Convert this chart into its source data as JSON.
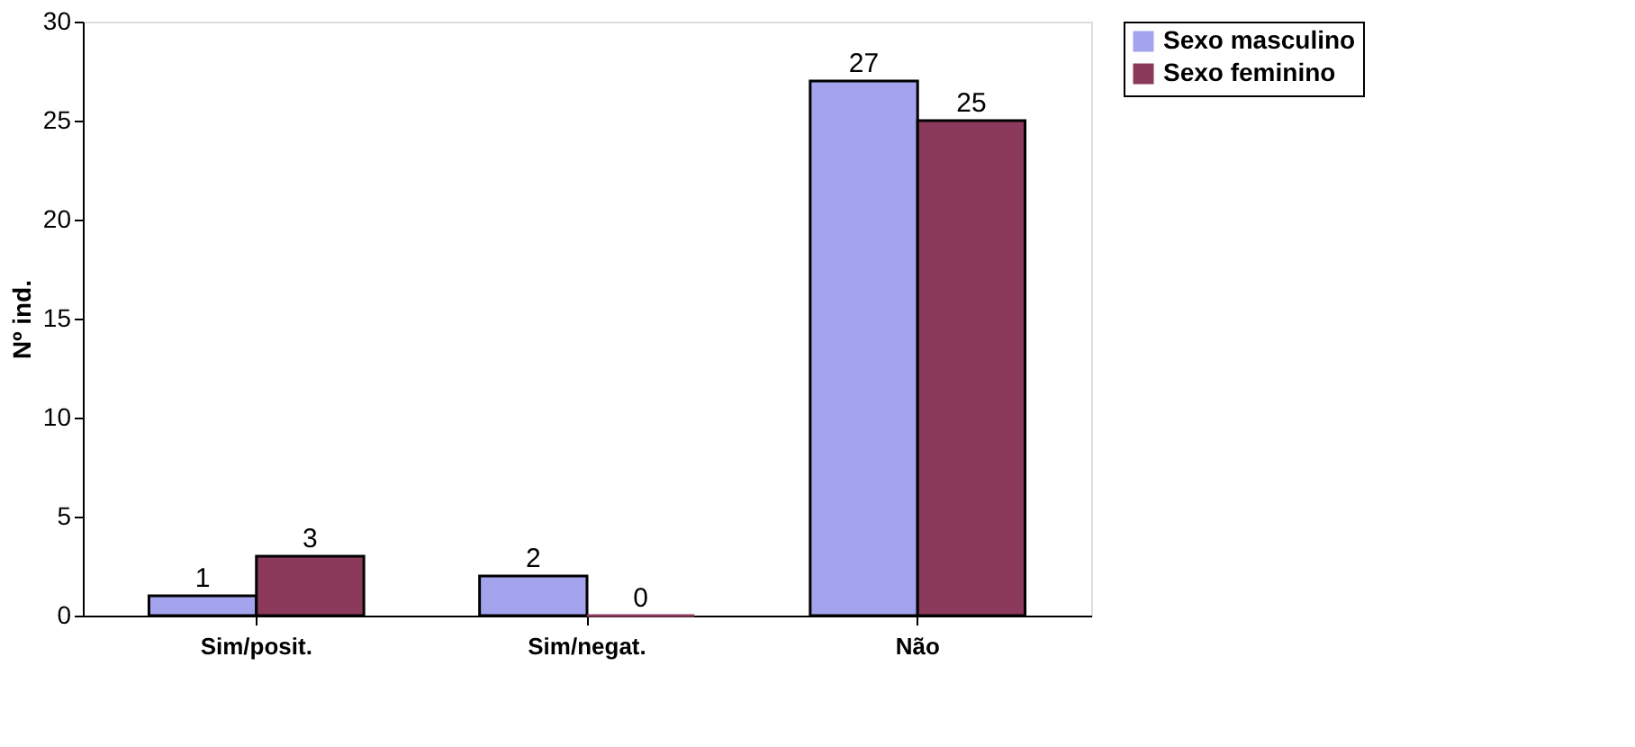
{
  "chart_data": {
    "type": "bar",
    "ylabel": "Nº ind.",
    "categories": [
      "Sim/posit.",
      "Sim/negat.",
      "Não"
    ],
    "series": [
      {
        "name": "Sexo masculino",
        "color": "#a3a3ee",
        "values": [
          1,
          2,
          27
        ]
      },
      {
        "name": "Sexo feminino",
        "color": "#8c3a5c",
        "values": [
          3,
          0,
          25
        ]
      }
    ],
    "ylim": [
      0,
      30
    ],
    "yticks": [
      0,
      5,
      10,
      15,
      20,
      25,
      30
    ],
    "data_labels": true,
    "legend": "right",
    "grid": false
  }
}
